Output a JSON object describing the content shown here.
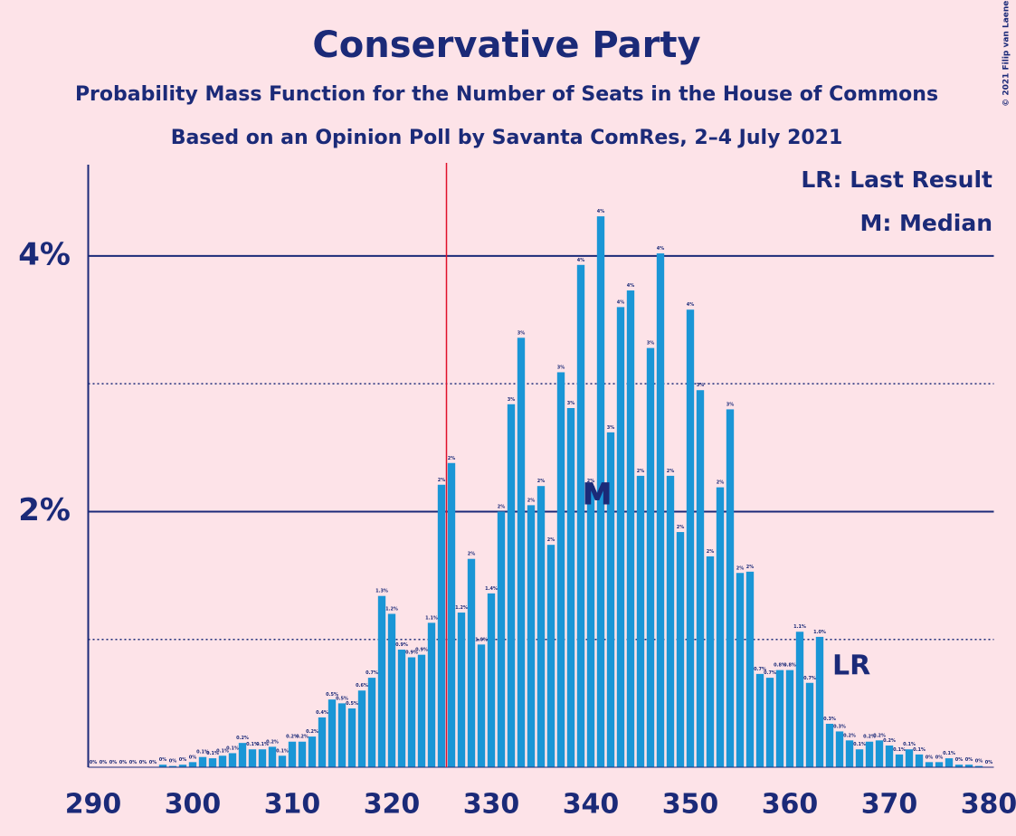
{
  "chart_data": {
    "type": "bar",
    "title": "Conservative Party",
    "subtitle": "Probability Mass Function for the Number of Seats in the House of Commons",
    "subtitle2": "Based on an Opinion Poll by Savanta ComRes, 2–4 July 2021",
    "copyright": "© 2021 Filip van Laenen",
    "categories": [
      290,
      291,
      292,
      293,
      294,
      295,
      296,
      297,
      298,
      299,
      300,
      301,
      302,
      303,
      304,
      305,
      306,
      307,
      308,
      309,
      310,
      311,
      312,
      313,
      314,
      315,
      316,
      317,
      318,
      319,
      320,
      321,
      322,
      323,
      324,
      325,
      326,
      327,
      328,
      329,
      330,
      331,
      332,
      333,
      334,
      335,
      336,
      337,
      338,
      339,
      340,
      341,
      342,
      343,
      344,
      345,
      346,
      347,
      348,
      349,
      350,
      351,
      352,
      353,
      354,
      355,
      356,
      357,
      358,
      359,
      360,
      361,
      362,
      363,
      364,
      365,
      366,
      367,
      368,
      369,
      370,
      371,
      372,
      373,
      374,
      375,
      376,
      377,
      378,
      379,
      380
    ],
    "values": [
      0,
      0,
      0,
      0,
      0,
      0,
      0,
      0.02,
      0.01,
      0.02,
      0.04,
      0.08,
      0.07,
      0.09,
      0.11,
      0.19,
      0.14,
      0.14,
      0.16,
      0.09,
      0.2,
      0.2,
      0.24,
      0.39,
      0.53,
      0.5,
      0.46,
      0.6,
      0.7,
      1.34,
      1.2,
      0.92,
      0.86,
      0.88,
      1.13,
      2.21,
      2.38,
      1.21,
      1.63,
      0.96,
      1.36,
      2.0,
      2.84,
      3.36,
      2.05,
      2.2,
      1.74,
      3.09,
      2.81,
      3.93,
      2.2,
      4.31,
      2.62,
      3.6,
      3.73,
      2.28,
      3.28,
      4.02,
      2.28,
      1.84,
      3.58,
      2.95,
      1.65,
      2.19,
      2.8,
      1.52,
      1.53,
      0.73,
      0.7,
      0.76,
      0.76,
      1.06,
      0.66,
      1.02,
      0.34,
      0.28,
      0.21,
      0.14,
      0.2,
      0.21,
      0.17,
      0.1,
      0.14,
      0.1,
      0.04,
      0.04,
      0.07,
      0.02,
      0.02,
      0.01,
      0
    ],
    "value_labels": [
      "0%",
      "0%",
      "0%",
      "0%",
      "0%",
      "0%",
      "0%",
      "0%",
      "0%",
      "0%",
      "0%",
      "0.1%",
      "0.1%",
      "0.1%",
      "0.1%",
      "0.2%",
      "0.1%",
      "0.1%",
      "0.2%",
      "0.1%",
      "0.2%",
      "0.2%",
      "0.2%",
      "0.4%",
      "0.5%",
      "0.5%",
      "0.5%",
      "0.6%",
      "0.7%",
      "1.3%",
      "1.2%",
      "0.9%",
      "0.9%",
      "0.9%",
      "1.1%",
      "2%",
      "2%",
      "1.2%",
      "2%",
      "1.0%",
      "1.4%",
      "2%",
      "3%",
      "3%",
      "2%",
      "2%",
      "2%",
      "3%",
      "3%",
      "4%",
      "2%",
      "4%",
      "3%",
      "4%",
      "4%",
      "2%",
      "3%",
      "4%",
      "2%",
      "2%",
      "4%",
      "3%",
      "2%",
      "2%",
      "3%",
      "2%",
      "2%",
      "0.7%",
      "0.7%",
      "0.8%",
      "0.8%",
      "1.1%",
      "0.7%",
      "1.0%",
      "0.3%",
      "0.3%",
      "0.2%",
      "0.1%",
      "0.2%",
      "0.2%",
      "0.2%",
      "0.1%",
      "0.1%",
      "0.1%",
      "0%",
      "0%",
      "0.1%",
      "0%",
      "0%",
      "0%",
      "0%"
    ],
    "color": "#1a96d6",
    "xlim": [
      289.5,
      380.5
    ],
    "xticks": [
      290,
      300,
      310,
      320,
      330,
      340,
      350,
      360,
      370,
      380
    ],
    "ylim": [
      0,
      4.7
    ],
    "yticks": [
      {
        "value": 2,
        "label": "2%"
      },
      {
        "value": 4,
        "label": "4%"
      }
    ],
    "minor_yticks": [
      1,
      3
    ],
    "majority_line": 325.5,
    "median": {
      "label": "M",
      "x": 341
    },
    "last_result": {
      "label": "LR",
      "x": 365
    },
    "legend": [
      "LR: Last Result",
      "M: Median"
    ]
  }
}
